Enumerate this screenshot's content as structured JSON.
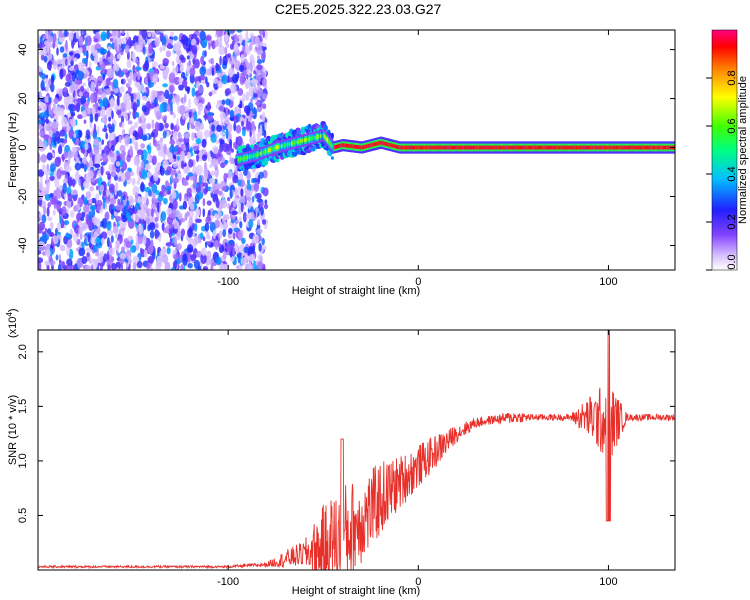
{
  "title": "C2E5.2025.322.23.03.G27",
  "chart_data": [
    {
      "type": "heatmap",
      "xlabel": "Height of straight line (km)",
      "ylabel": "Frequency (Hz)",
      "xlim": [
        -200,
        135
      ],
      "ylim": [
        -50,
        48
      ],
      "x_ticks": [
        -100,
        0,
        100
      ],
      "x_tick_labels": [
        "-100",
        "0",
        "100"
      ],
      "y_ticks": [
        -40,
        -20,
        0,
        20,
        40
      ],
      "y_tick_labels": [
        "-40",
        "-20",
        "0",
        "20",
        "40"
      ],
      "colorbar": {
        "label": "Normalized spectral amplitude",
        "range": [
          0,
          1
        ],
        "ticks": [
          0.0,
          0.2,
          0.4,
          0.6,
          0.8
        ],
        "tick_labels": [
          "0.0",
          "0.2",
          "0.4",
          "0.6",
          "0.8"
        ],
        "colors": [
          "#ffffff",
          "#d8c0ff",
          "#8040ff",
          "#2020ff",
          "#00c0ff",
          "#00ff80",
          "#40ff00",
          "#ffff00",
          "#ff8000",
          "#ff0000",
          "#ff0080"
        ]
      },
      "regions": [
        {
          "x": [
            -200,
            -80
          ],
          "freq": [
            -50,
            48
          ],
          "amplitude": 0.2
        },
        {
          "x": [
            -95,
            -45
          ],
          "freq": [
            -5,
            10
          ],
          "amplitude": 0.4
        },
        {
          "x": [
            -45,
            135
          ],
          "freq": [
            -2,
            2
          ],
          "amplitude": 0.95
        }
      ],
      "ridge": [
        [
          -95,
          -5
        ],
        [
          -85,
          -3
        ],
        [
          -75,
          0
        ],
        [
          -65,
          2
        ],
        [
          -55,
          4
        ],
        [
          -50,
          5
        ],
        [
          -45,
          0
        ],
        [
          -40,
          1
        ],
        [
          -30,
          0
        ],
        [
          -20,
          2
        ],
        [
          -10,
          0
        ],
        [
          0,
          0
        ],
        [
          50,
          0
        ],
        [
          100,
          0
        ],
        [
          135,
          0
        ]
      ]
    },
    {
      "type": "line",
      "xlabel": "Height of straight line (km)",
      "ylabel": "SNR (10 * v/v)",
      "multiplier_label": "(x10",
      "multiplier_exp": "4",
      "xlim": [
        -200,
        135
      ],
      "ylim": [
        0,
        2.2
      ],
      "x_ticks": [
        -100,
        0,
        100
      ],
      "x_tick_labels": [
        "-100",
        "0",
        "100"
      ],
      "y_ticks": [
        0.5,
        1.0,
        1.5,
        2.0
      ],
      "y_tick_labels": [
        "0.5",
        "1.0",
        "1.5",
        "2.0"
      ],
      "color": "#e8302a",
      "envelope": {
        "x": [
          -200,
          -100,
          -80,
          -70,
          -60,
          -50,
          -40,
          -30,
          -20,
          -10,
          0,
          10,
          20,
          30,
          40,
          50,
          60,
          70,
          80,
          90,
          100,
          110,
          120,
          135
        ],
        "mean": [
          0.03,
          0.03,
          0.05,
          0.1,
          0.15,
          0.2,
          0.3,
          0.45,
          0.65,
          0.8,
          0.95,
          1.1,
          1.25,
          1.35,
          1.38,
          1.4,
          1.4,
          1.4,
          1.4,
          1.4,
          1.35,
          1.4,
          1.4,
          1.4
        ],
        "noise": [
          0.01,
          0.01,
          0.02,
          0.08,
          0.12,
          0.4,
          0.5,
          0.4,
          0.35,
          0.25,
          0.2,
          0.15,
          0.08,
          0.05,
          0.04,
          0.06,
          0.03,
          0.03,
          0.03,
          0.2,
          0.4,
          0.03,
          0.03,
          0.03
        ]
      }
    }
  ]
}
